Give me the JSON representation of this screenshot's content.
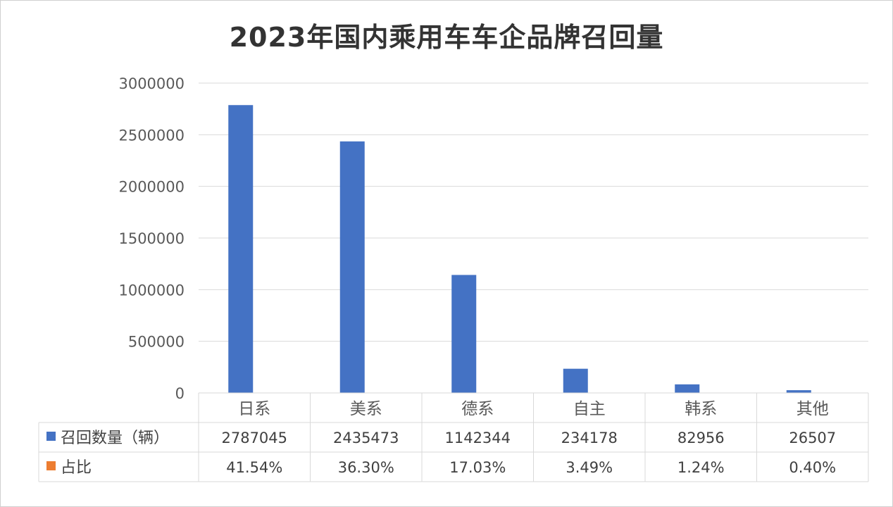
{
  "chart_data": {
    "type": "bar",
    "title": "2023年国内乘用车车企品牌召回量",
    "categories": [
      "日系",
      "美系",
      "德系",
      "自主",
      "韩系",
      "其他"
    ],
    "series": [
      {
        "name": "召回数量（辆）",
        "values": [
          2787045,
          2435473,
          1142344,
          234178,
          82956,
          26507
        ],
        "color": "#4472C4"
      },
      {
        "name": "占比",
        "values": [
          41.54,
          36.3,
          17.03,
          3.49,
          1.24,
          0.4
        ],
        "display": [
          "41.54%",
          "36.30%",
          "17.03%",
          "3.49%",
          "1.24%",
          "0.40%"
        ],
        "color": "#ED7D31"
      }
    ],
    "y_ticks": [
      "0",
      "500000",
      "1000000",
      "1500000",
      "2000000",
      "2500000",
      "3000000"
    ],
    "ylim": [
      0,
      3000000
    ],
    "grid": true,
    "legend": "data-table"
  }
}
